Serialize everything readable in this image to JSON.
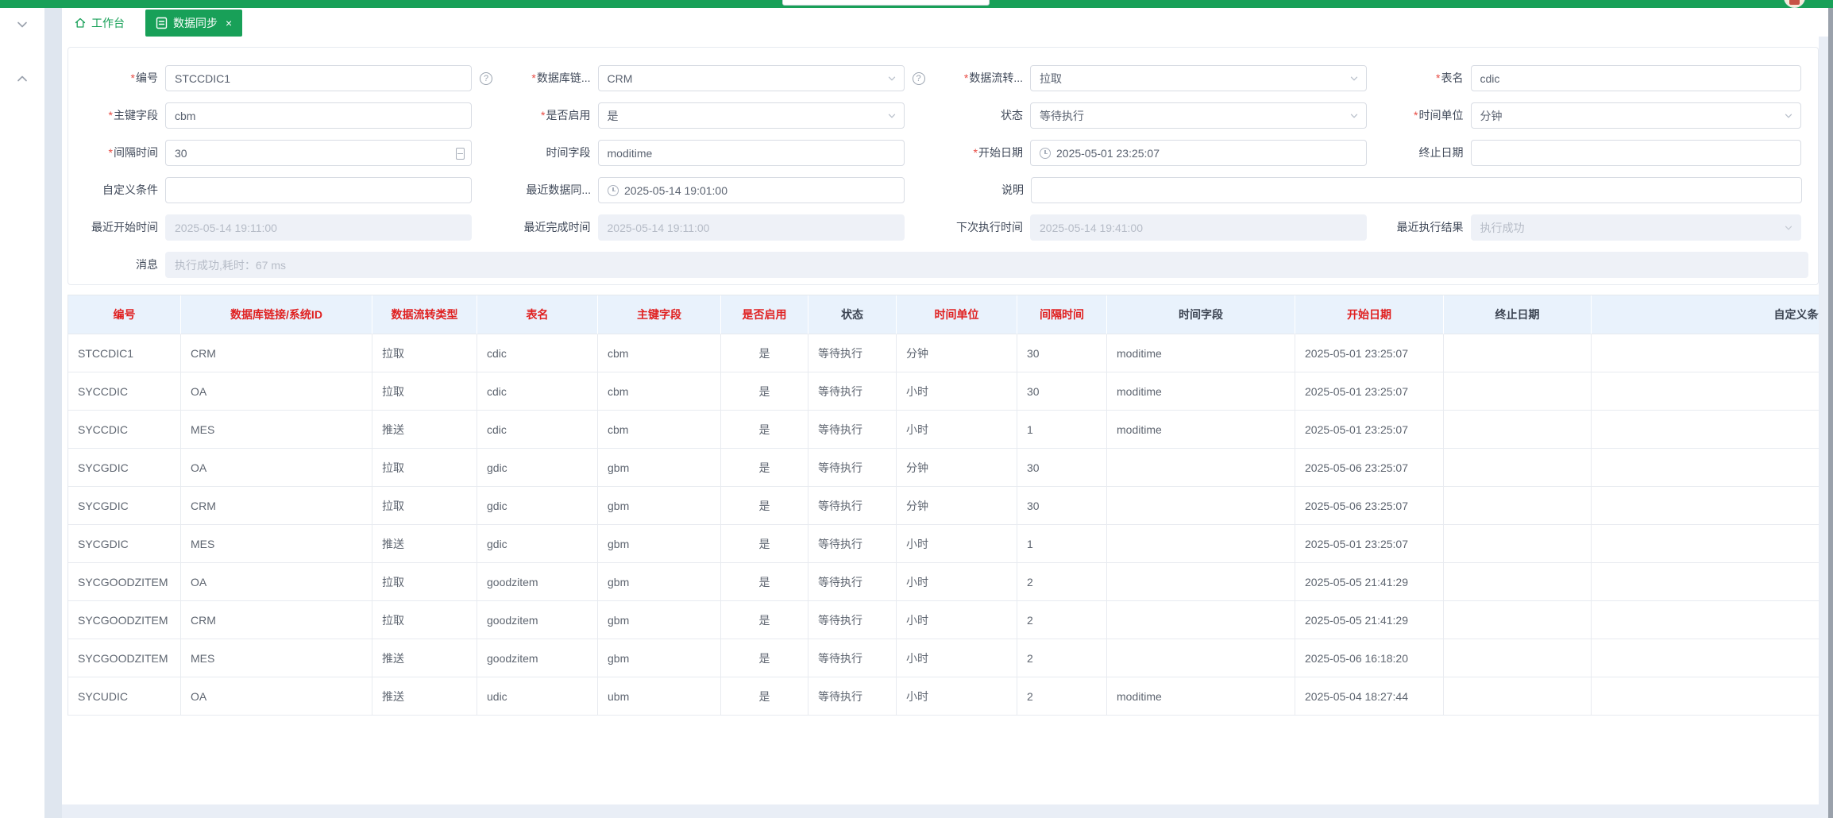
{
  "colors": {
    "primary": "#18a058",
    "header_red": "#e02020",
    "asterisk": "#e84a42"
  },
  "tab_bar": {
    "tabs": [
      {
        "label": "工作台",
        "icon": "home",
        "active": false
      },
      {
        "label": "数据同步",
        "icon": "document",
        "active": true,
        "close_glyph": "×"
      }
    ]
  },
  "form": {
    "required_marker": "*",
    "help_glyph": "?",
    "fields": {
      "code": {
        "label": "编号",
        "required": true,
        "value": "STCCDIC1"
      },
      "db_link": {
        "label": "数据库链...",
        "required": true,
        "value": "CRM"
      },
      "flow_type": {
        "label": "数据流转...",
        "required": true,
        "value": "拉取"
      },
      "table_name": {
        "label": "表名",
        "required": true,
        "value": "cdic"
      },
      "pk_field": {
        "label": "主键字段",
        "required": true,
        "value": "cbm"
      },
      "enabled": {
        "label": "是否启用",
        "required": true,
        "value": "是"
      },
      "status": {
        "label": "状态",
        "required": false,
        "value": "等待执行"
      },
      "time_unit": {
        "label": "时间单位",
        "required": true,
        "value": "分钟"
      },
      "interval": {
        "label": "间隔时间",
        "required": true,
        "value": "30"
      },
      "time_field": {
        "label": "时间字段",
        "required": false,
        "value": "moditime"
      },
      "start_date": {
        "label": "开始日期",
        "required": true,
        "value": "2025-05-01 23:25:07"
      },
      "end_date": {
        "label": "终止日期",
        "required": false,
        "value": ""
      },
      "custom_cond": {
        "label": "自定义条件",
        "required": false,
        "value": ""
      },
      "last_sync": {
        "label": "最近数据同...",
        "required": false,
        "value": "2025-05-14 19:01:00"
      },
      "remark": {
        "label": "说明",
        "required": false,
        "value": ""
      },
      "last_start": {
        "label": "最近开始时间",
        "required": false,
        "value": "2025-05-14 19:11:00"
      },
      "last_finish": {
        "label": "最近完成时间",
        "required": false,
        "value": "2025-05-14 19:11:00"
      },
      "next_time": {
        "label": "下次执行时间",
        "required": false,
        "value": "2025-05-14 19:41:00"
      },
      "last_result": {
        "label": "最近执行结果",
        "required": false,
        "value": "执行成功"
      },
      "message": {
        "label": "消息",
        "required": false,
        "value": "执行成功,耗时：67 ms"
      }
    }
  },
  "table": {
    "columns": [
      {
        "label": "编号",
        "required": true
      },
      {
        "label": "数据库链接/系统ID",
        "required": true
      },
      {
        "label": "数据流转类型",
        "required": true
      },
      {
        "label": "表名",
        "required": true
      },
      {
        "label": "主键字段",
        "required": true
      },
      {
        "label": "是否启用",
        "required": true
      },
      {
        "label": "状态",
        "required": false
      },
      {
        "label": "时间单位",
        "required": true
      },
      {
        "label": "间隔时间",
        "required": true
      },
      {
        "label": "时间字段",
        "required": false
      },
      {
        "label": "开始日期",
        "required": true
      },
      {
        "label": "终止日期",
        "required": false
      },
      {
        "label": "自定义条件",
        "required": false
      }
    ],
    "rows": [
      [
        "STCCDIC1",
        "CRM",
        "拉取",
        "cdic",
        "cbm",
        "是",
        "等待执行",
        "分钟",
        "30",
        "moditime",
        "2025-05-01 23:25:07",
        "",
        ""
      ],
      [
        "SYCCDIC",
        "OA",
        "拉取",
        "cdic",
        "cbm",
        "是",
        "等待执行",
        "小时",
        "30",
        "moditime",
        "2025-05-01 23:25:07",
        "",
        ""
      ],
      [
        "SYCCDIC",
        "MES",
        "推送",
        "cdic",
        "cbm",
        "是",
        "等待执行",
        "小时",
        "1",
        "moditime",
        "2025-05-01 23:25:07",
        "",
        ""
      ],
      [
        "SYCGDIC",
        "OA",
        "拉取",
        "gdic",
        "gbm",
        "是",
        "等待执行",
        "分钟",
        "30",
        "",
        "2025-05-06 23:25:07",
        "",
        ""
      ],
      [
        "SYCGDIC",
        "CRM",
        "拉取",
        "gdic",
        "gbm",
        "是",
        "等待执行",
        "分钟",
        "30",
        "",
        "2025-05-06 23:25:07",
        "",
        ""
      ],
      [
        "SYCGDIC",
        "MES",
        "推送",
        "gdic",
        "gbm",
        "是",
        "等待执行",
        "小时",
        "1",
        "",
        "2025-05-01 23:25:07",
        "",
        ""
      ],
      [
        "SYCGOODZITEM",
        "OA",
        "拉取",
        "goodzitem",
        "gbm",
        "是",
        "等待执行",
        "小时",
        "2",
        "",
        "2025-05-05 21:41:29",
        "",
        ""
      ],
      [
        "SYCGOODZITEM",
        "CRM",
        "拉取",
        "goodzitem",
        "gbm",
        "是",
        "等待执行",
        "小时",
        "2",
        "",
        "2025-05-05 21:41:29",
        "",
        ""
      ],
      [
        "SYCGOODZITEM",
        "MES",
        "推送",
        "goodzitem",
        "gbm",
        "是",
        "等待执行",
        "小时",
        "2",
        "",
        "2025-05-06 16:18:20",
        "",
        ""
      ],
      [
        "SYCUDIC",
        "OA",
        "推送",
        "udic",
        "ubm",
        "是",
        "等待执行",
        "小时",
        "2",
        "moditime",
        "2025-05-04 18:27:44",
        "",
        ""
      ]
    ]
  }
}
